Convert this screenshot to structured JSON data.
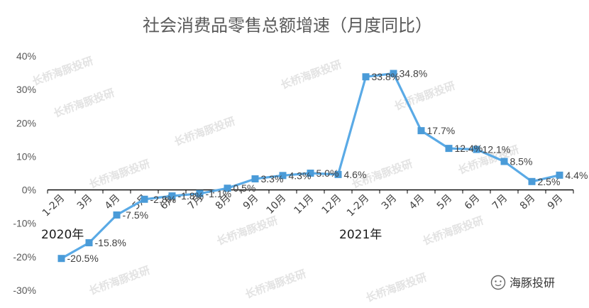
{
  "chart_data": {
    "type": "line",
    "title": "社会消费品零售总额增速（月度同比）",
    "categories": [
      "1-2月",
      "3月",
      "4月",
      "5月",
      "6月",
      "7月",
      "8月",
      "9月",
      "10月",
      "11月",
      "12月",
      "1-2月",
      "3月",
      "4月",
      "5月",
      "6月",
      "7月",
      "8月",
      "9月"
    ],
    "values": [
      -20.5,
      -15.8,
      -7.5,
      -2.8,
      -1.8,
      -1.1,
      0.5,
      3.3,
      4.3,
      5.0,
      4.6,
      33.8,
      34.8,
      17.7,
      12.4,
      12.1,
      8.5,
      2.5,
      4.4
    ],
    "data_labels": [
      "-20.5%",
      "-15.8%",
      "-7.5%",
      "-2.8%",
      "-1.8%",
      "-1.1%",
      "0.5%",
      "3.3%",
      "4.3%",
      "5.0%",
      "4.6%",
      "33.8%",
      "34.8%",
      "17.7%",
      "12.4%",
      "12.1%",
      "8.5%",
      "2.5%",
      "4.4%"
    ],
    "ylim": [
      -30,
      40
    ],
    "yticks": [
      "-30%",
      "-20%",
      "-10%",
      "0%",
      "10%",
      "20%",
      "30%",
      "40%"
    ],
    "year_labels": [
      "2020年",
      "2021年"
    ],
    "grid": false,
    "legend": "none",
    "series_color": "#5aaae6",
    "marker_color": "#4a9bd8"
  },
  "watermark": {
    "text": "长桥海豚投研",
    "brand_text": "海豚投研"
  }
}
